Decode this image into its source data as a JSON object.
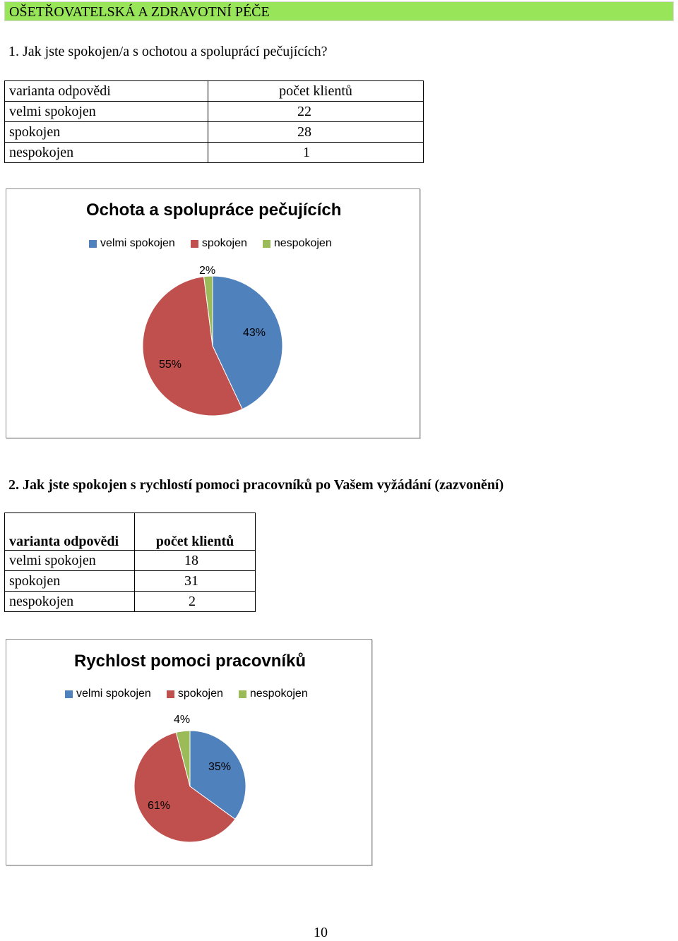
{
  "header": {
    "section_title": "OŠETŘOVATELSKÁ A ZDRAVOTNÍ PÉČE"
  },
  "q1": {
    "question": "1. Jak jste spokojen/a s ochotou a spoluprácí pečujících?",
    "table": {
      "headers": [
        "varianta odpovědi",
        "počet klientů"
      ],
      "rows": [
        [
          "velmi spokojen",
          "22"
        ],
        [
          "spokojen",
          "28"
        ],
        [
          "nespokojen",
          "1"
        ]
      ]
    }
  },
  "q2": {
    "question": "2. Jak jste spokojen s rychlostí pomoci pracovníků po Vašem vyžádání (zazvonění)",
    "table": {
      "headers": [
        "varianta odpovědi",
        "počet klientů"
      ],
      "rows": [
        [
          "velmi spokojen",
          "18"
        ],
        [
          "spokojen",
          "31"
        ],
        [
          "nespokojen",
          "2"
        ]
      ]
    }
  },
  "chart_data": [
    {
      "type": "pie",
      "title": "Ochota a spolupráce pečujících",
      "categories": [
        "velmi spokojen",
        "spokojen",
        "nespokojen"
      ],
      "values": [
        43,
        55,
        2
      ],
      "labels": [
        "43%",
        "55%",
        "2%"
      ],
      "colors": [
        "#4f81bd",
        "#c0504d",
        "#9bbb59"
      ],
      "legend": "top"
    },
    {
      "type": "pie",
      "title": "Rychlost pomoci pracovníků",
      "categories": [
        "velmi spokojen",
        "spokojen",
        "nespokojen"
      ],
      "values": [
        35,
        61,
        4
      ],
      "labels": [
        "35%",
        "61%",
        "4%"
      ],
      "colors": [
        "#4f81bd",
        "#c0504d",
        "#9bbb59"
      ],
      "legend": "top"
    }
  ],
  "footer": {
    "page_number": "10"
  }
}
